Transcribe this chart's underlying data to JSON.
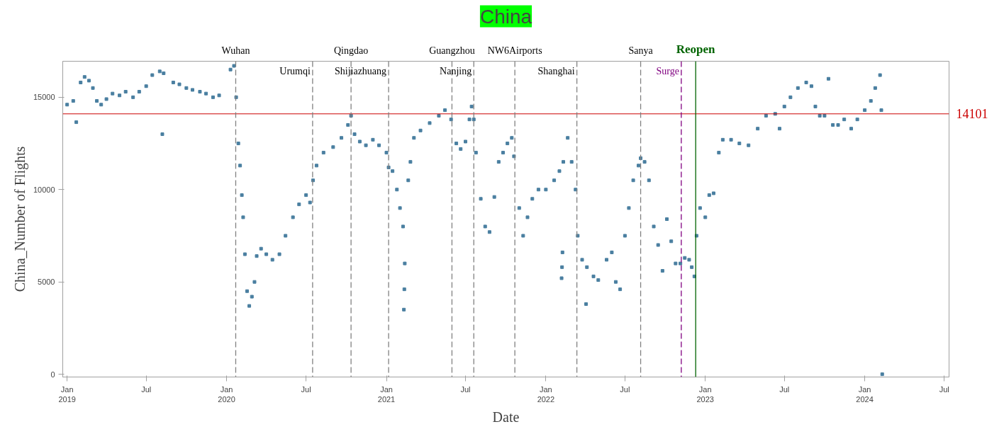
{
  "chart_data": {
    "type": "scatter",
    "title": "China",
    "xlabel": "Date",
    "ylabel": "China_Number of Flights",
    "xlim": [
      "2018-12-22",
      "2024-07-12"
    ],
    "ylim": [
      -150,
      16950
    ],
    "xticks": [
      {
        "value": "2019-01-01",
        "label": "Jan\n2019"
      },
      {
        "value": "2019-07-01",
        "label": "Jul"
      },
      {
        "value": "2020-01-01",
        "label": "Jan\n2020"
      },
      {
        "value": "2020-07-01",
        "label": "Jul"
      },
      {
        "value": "2021-01-01",
        "label": "Jan\n2021"
      },
      {
        "value": "2021-07-01",
        "label": "Jul"
      },
      {
        "value": "2022-01-01",
        "label": "Jan\n2022"
      },
      {
        "value": "2022-07-01",
        "label": "Jul"
      },
      {
        "value": "2023-01-01",
        "label": "Jan\n2023"
      },
      {
        "value": "2023-07-01",
        "label": "Jul"
      },
      {
        "value": "2024-01-01",
        "label": "Jan\n2024"
      },
      {
        "value": "2024-07-01",
        "label": "Jul"
      }
    ],
    "yticks": [
      0,
      5000,
      10000,
      15000
    ],
    "grid": false,
    "marker": "square",
    "series": [
      {
        "color": "#4a7fa0",
        "x": [
          "2019-01-01",
          "2019-01-15",
          "2019-01-22",
          "2019-02-01",
          "2019-02-10",
          "2019-02-20",
          "2019-03-01",
          "2019-03-10",
          "2019-03-20",
          "2019-04-01",
          "2019-04-15",
          "2019-05-01",
          "2019-05-15",
          "2019-06-01",
          "2019-06-15",
          "2019-07-01",
          "2019-07-15",
          "2019-08-01",
          "2019-08-07",
          "2019-08-10",
          "2019-09-01",
          "2019-09-15",
          "2019-10-01",
          "2019-10-15",
          "2019-11-01",
          "2019-11-15",
          "2019-12-01",
          "2019-12-15",
          "2020-01-10",
          "2020-01-18",
          "2020-01-23",
          "2020-01-28",
          "2020-02-01",
          "2020-02-05",
          "2020-02-08",
          "2020-02-12",
          "2020-02-17",
          "2020-02-22",
          "2020-02-28",
          "2020-03-05",
          "2020-03-10",
          "2020-03-20",
          "2020-04-01",
          "2020-04-15",
          "2020-05-01",
          "2020-05-15",
          "2020-06-01",
          "2020-06-15",
          "2020-07-01",
          "2020-07-10",
          "2020-07-17",
          "2020-07-25",
          "2020-08-10",
          "2020-09-01",
          "2020-09-20",
          "2020-10-05",
          "2020-10-12",
          "2020-10-20",
          "2020-11-01",
          "2020-11-15",
          "2020-12-01",
          "2020-12-15",
          "2021-01-01",
          "2021-01-06",
          "2021-01-15",
          "2021-01-25",
          "2021-02-01",
          "2021-02-08",
          "2021-02-10",
          "2021-02-11",
          "2021-02-12",
          "2021-02-20",
          "2021-02-25",
          "2021-03-05",
          "2021-03-20",
          "2021-04-10",
          "2021-05-01",
          "2021-05-15",
          "2021-05-29",
          "2021-06-10",
          "2021-06-20",
          "2021-07-01",
          "2021-07-10",
          "2021-07-15",
          "2021-07-20",
          "2021-07-25",
          "2021-08-05",
          "2021-08-15",
          "2021-08-25",
          "2021-09-05",
          "2021-09-15",
          "2021-09-25",
          "2021-10-05",
          "2021-10-15",
          "2021-10-20",
          "2021-11-01",
          "2021-11-10",
          "2021-11-20",
          "2021-12-01",
          "2021-12-15",
          "2022-01-01",
          "2022-01-20",
          "2022-02-01",
          "2022-02-06",
          "2022-02-07",
          "2022-02-08",
          "2022-02-10",
          "2022-02-20",
          "2022-03-01",
          "2022-03-10",
          "2022-03-15",
          "2022-03-25",
          "2022-04-03",
          "2022-04-05",
          "2022-04-20",
          "2022-05-01",
          "2022-05-20",
          "2022-06-01",
          "2022-06-10",
          "2022-06-20",
          "2022-07-01",
          "2022-07-10",
          "2022-07-20",
          "2022-08-01",
          "2022-08-06",
          "2022-08-15",
          "2022-08-25",
          "2022-09-05",
          "2022-09-15",
          "2022-09-25",
          "2022-10-05",
          "2022-10-15",
          "2022-10-25",
          "2022-11-05",
          "2022-11-15",
          "2022-11-25",
          "2022-12-01",
          "2022-12-07",
          "2022-12-12",
          "2022-12-20",
          "2023-01-01",
          "2023-01-10",
          "2023-01-20",
          "2023-02-01",
          "2023-02-10",
          "2023-03-01",
          "2023-03-20",
          "2023-04-10",
          "2023-05-01",
          "2023-05-20",
          "2023-06-10",
          "2023-06-20",
          "2023-07-01",
          "2023-07-15",
          "2023-08-01",
          "2023-08-20",
          "2023-09-01",
          "2023-09-10",
          "2023-09-20",
          "2023-10-01",
          "2023-10-10",
          "2023-10-20",
          "2023-11-01",
          "2023-11-15",
          "2023-12-01",
          "2023-12-15",
          "2024-01-01",
          "2024-01-15",
          "2024-01-25",
          "2024-02-05",
          "2024-02-08",
          "2024-02-10"
        ],
        "values": [
          14600,
          14800,
          13650,
          15800,
          16100,
          15900,
          15500,
          14800,
          14600,
          14900,
          15200,
          15100,
          15300,
          15000,
          15300,
          15600,
          16200,
          16400,
          13000,
          16300,
          15800,
          15700,
          15500,
          15400,
          15300,
          15200,
          15000,
          15100,
          16500,
          16700,
          15000,
          12500,
          11300,
          9700,
          8500,
          6500,
          4500,
          3700,
          4200,
          5000,
          6400,
          6800,
          6500,
          6200,
          6500,
          7500,
          8500,
          9200,
          9700,
          9300,
          10500,
          11300,
          12000,
          12300,
          12800,
          13500,
          14000,
          13000,
          12600,
          12400,
          12700,
          12400,
          12000,
          11200,
          11000,
          10000,
          9000,
          8000,
          3500,
          4600,
          6000,
          10500,
          11500,
          12800,
          13200,
          13600,
          14000,
          14300,
          13800,
          12500,
          12200,
          12600,
          13800,
          14500,
          13800,
          12000,
          9500,
          8000,
          7700,
          9600,
          11500,
          12000,
          12500,
          12800,
          11800,
          9000,
          7500,
          8500,
          9500,
          10000,
          10000,
          10500,
          11000,
          5200,
          5800,
          6600,
          11500,
          12800,
          11500,
          10000,
          7500,
          6200,
          3800,
          5800,
          5300,
          5100,
          6200,
          6600,
          5000,
          4600,
          7500,
          9000,
          10500,
          11300,
          11700,
          11500,
          10500,
          8000,
          7000,
          5600,
          8400,
          7200,
          6000,
          6000,
          6300,
          6200,
          5800,
          5300,
          7500,
          9000,
          8500,
          9700,
          9800,
          12000,
          12700,
          12700,
          12500,
          12400,
          13300,
          14000,
          14100,
          13300,
          14500,
          15000,
          15500,
          15800,
          15600,
          14500,
          14000,
          14000,
          16000,
          13500,
          13500,
          13800,
          13300,
          13800,
          14300,
          14800,
          15500,
          16200,
          14300,
          0
        ]
      }
    ],
    "ref_lines": [
      {
        "axis": "y",
        "value": 14101,
        "label": "14101",
        "color": "#cc0000",
        "line_style": "solid"
      },
      {
        "axis": "x",
        "value": "2020-01-22",
        "label": "Wuhan",
        "color": "#808080",
        "line_style": "dashed"
      },
      {
        "axis": "x",
        "value": "2020-07-16",
        "label": "Urumqi",
        "color": "#808080",
        "line_style": "dashed"
      },
      {
        "axis": "x",
        "value": "2020-10-12",
        "label": "Qingdao",
        "color": "#808080",
        "line_style": "dashed"
      },
      {
        "axis": "x",
        "value": "2021-01-06",
        "label": "Shijiazhuang",
        "color": "#808080",
        "line_style": "dashed"
      },
      {
        "axis": "x",
        "value": "2021-05-31",
        "label": "Guangzhou",
        "color": "#808080",
        "line_style": "dashed"
      },
      {
        "axis": "x",
        "value": "2021-07-20",
        "label": "Nanjing",
        "color": "#808080",
        "line_style": "dashed"
      },
      {
        "axis": "x",
        "value": "2021-10-22",
        "label": "NW6Airports",
        "color": "#808080",
        "line_style": "dashed"
      },
      {
        "axis": "x",
        "value": "2022-03-13",
        "label": "Shanghai",
        "color": "#808080",
        "line_style": "dashed"
      },
      {
        "axis": "x",
        "value": "2022-08-06",
        "label": "Sanya",
        "color": "#808080",
        "line_style": "dashed"
      },
      {
        "axis": "x",
        "value": "2022-11-07",
        "label": "Surge",
        "color": "#800080",
        "line_style": "dashed"
      },
      {
        "axis": "x",
        "value": "2022-12-10",
        "label": "Reopen",
        "color": "#006400",
        "line_style": "solid"
      }
    ]
  }
}
